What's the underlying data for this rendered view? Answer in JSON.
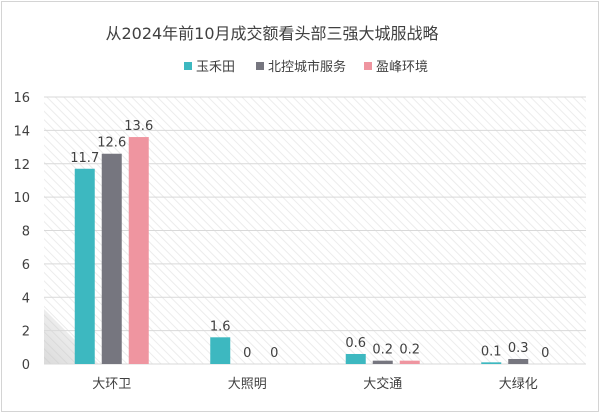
{
  "chart_data": {
    "type": "bar",
    "title": "从2024年前10月成交额看头部三强大城服战略",
    "xlabel": "",
    "ylabel": "",
    "categories": [
      "大环卫",
      "大照明",
      "大交通",
      "大绿化"
    ],
    "series": [
      {
        "name": "玉禾田",
        "values": [
          11.7,
          1.6,
          0.6,
          0.1
        ],
        "labels": [
          "11.7",
          "1.6",
          "0.6",
          "0.1"
        ]
      },
      {
        "name": "北控城市服务",
        "values": [
          12.6,
          0,
          0.2,
          0.3
        ],
        "labels": [
          "12.6",
          "0",
          "0.2",
          "0.3"
        ]
      },
      {
        "name": "盈峰环境",
        "values": [
          13.6,
          0,
          0.2,
          0
        ],
        "labels": [
          "13.6",
          "0",
          "0.2",
          "0"
        ]
      }
    ],
    "ylim": [
      0,
      16
    ],
    "yticks": [
      "0",
      "2",
      "4",
      "6",
      "8",
      "10",
      "12",
      "14",
      "16"
    ],
    "grid": true,
    "legend_position": "top"
  },
  "colors": {
    "series": [
      "#3db8c0",
      "#76767f",
      "#ef95a0"
    ],
    "grid": "#d9d9d9",
    "text": "#404040"
  }
}
